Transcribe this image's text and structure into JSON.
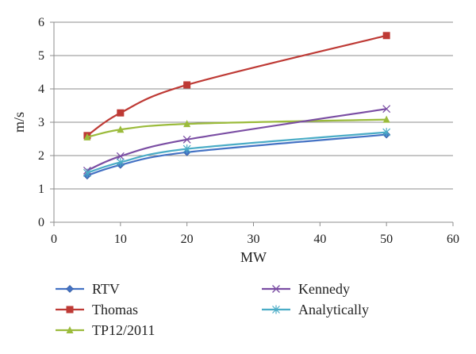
{
  "chart_data": {
    "type": "line",
    "title": "",
    "xlabel": "MW",
    "ylabel": "m/s",
    "xlim": [
      0,
      60
    ],
    "ylim": [
      0,
      6
    ],
    "xticks": [
      0,
      10,
      20,
      30,
      40,
      50,
      60
    ],
    "yticks": [
      0,
      1,
      2,
      3,
      4,
      5,
      6
    ],
    "grid": "horizontal",
    "legend_position": "bottom",
    "x": [
      5,
      10,
      20,
      50
    ],
    "series": [
      {
        "name": "RTV",
        "values": [
          1.4,
          1.72,
          2.1,
          2.63
        ],
        "color": "#4472c4",
        "marker": "diamond"
      },
      {
        "name": "Thomas",
        "values": [
          2.6,
          3.28,
          4.12,
          5.6
        ],
        "color": "#be3a35",
        "marker": "square"
      },
      {
        "name": "TP12/2011",
        "values": [
          2.55,
          2.78,
          2.95,
          3.08
        ],
        "color": "#9bbb3b",
        "marker": "triangle"
      },
      {
        "name": "Kennedy",
        "values": [
          1.55,
          1.98,
          2.48,
          3.4
        ],
        "color": "#7a4da3",
        "marker": "x"
      },
      {
        "name": "Analytically",
        "values": [
          1.48,
          1.8,
          2.2,
          2.7
        ],
        "color": "#4aacc6",
        "marker": "star"
      }
    ]
  }
}
